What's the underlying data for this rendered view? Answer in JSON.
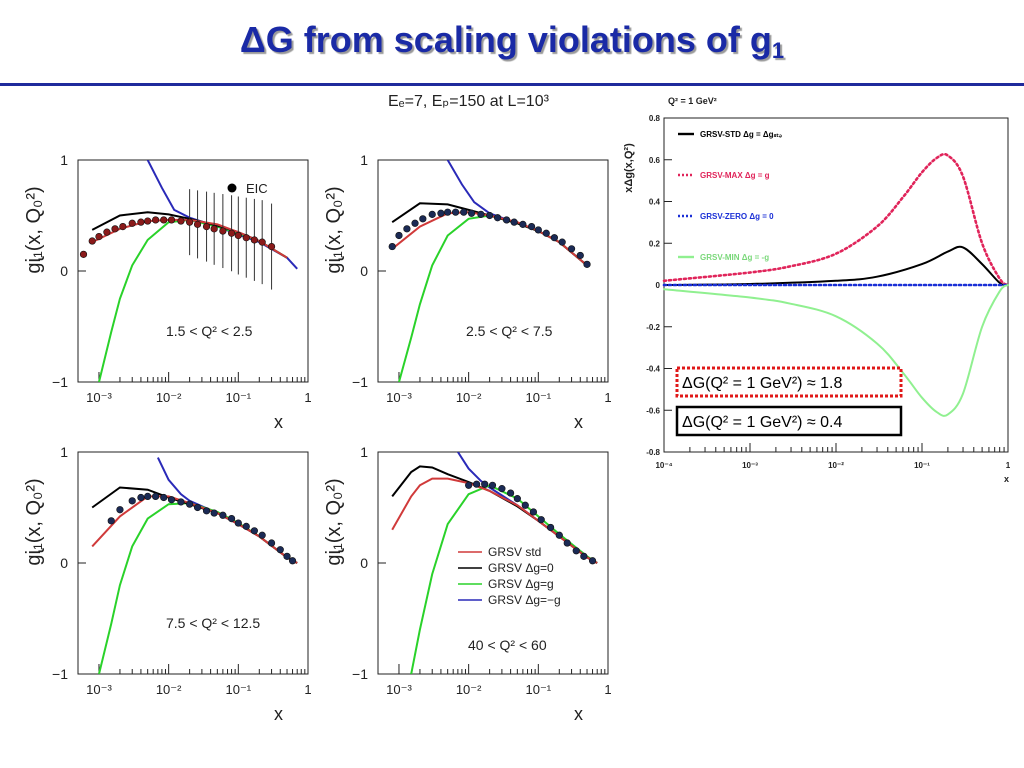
{
  "slide": {
    "title_main": "ΔG from scaling violations of g",
    "title_sub": "1"
  },
  "left_figure": {
    "header": "Eₑ=7, Eₚ=150 at L=10³",
    "ylabel": "gᶖ₁(x, Q₀²)",
    "xlabel": "x",
    "y_ticks": [
      "1",
      "0",
      "−1"
    ],
    "x_ticks": [
      "10⁻³",
      "10⁻²",
      "10⁻¹",
      "1"
    ],
    "eic_label": "EIC",
    "legend": [
      {
        "label": "GRSV std",
        "color": "#d03a3a"
      },
      {
        "label": "GRSV Δg=0",
        "color": "#000000"
      },
      {
        "label": "GRSV Δg=g",
        "color": "#2ad22a"
      },
      {
        "label": "GRSV Δg=−g",
        "color": "#2a2ab8"
      }
    ]
  },
  "chart_data": [
    {
      "type": "line",
      "panel_label": "1.5 < Q² < 2.5",
      "xscale": "log",
      "xlim": [
        0.0005,
        1
      ],
      "ylim": [
        -1,
        1
      ],
      "series": [
        {
          "name": "GRSV std",
          "x": [
            0.0008,
            0.002,
            0.005,
            0.01,
            0.02,
            0.05,
            0.1,
            0.2,
            0.5
          ],
          "y": [
            0.26,
            0.38,
            0.45,
            0.46,
            0.46,
            0.42,
            0.35,
            0.27,
            0.12
          ]
        },
        {
          "name": "GRSV Δg=0",
          "x": [
            0.0008,
            0.002,
            0.005,
            0.01,
            0.02,
            0.05,
            0.1,
            0.2,
            0.5
          ],
          "y": [
            0.37,
            0.5,
            0.53,
            0.51,
            0.47,
            0.41,
            0.35,
            0.27,
            0.12
          ]
        },
        {
          "name": "GRSV Δg=g",
          "x": [
            0.001,
            0.0015,
            0.002,
            0.003,
            0.005,
            0.01,
            0.02,
            0.05,
            0.1,
            0.2,
            0.5
          ],
          "y": [
            -1.0,
            -0.55,
            -0.25,
            0.05,
            0.28,
            0.44,
            0.46,
            0.4,
            0.34,
            0.27,
            0.12
          ]
        },
        {
          "name": "GRSV Δg=−g",
          "x": [
            0.005,
            0.008,
            0.012,
            0.02,
            0.05,
            0.1,
            0.2,
            0.5,
            0.7
          ],
          "y": [
            1.0,
            0.75,
            0.55,
            0.48,
            0.4,
            0.33,
            0.26,
            0.12,
            0.02
          ]
        }
      ],
      "eic_points": {
        "x": [
          0.0006,
          0.0008,
          0.001,
          0.0013,
          0.0017,
          0.0022,
          0.003,
          0.004,
          0.005,
          0.0065,
          0.0085,
          0.011,
          0.015,
          0.02,
          0.026,
          0.035,
          0.045,
          0.06,
          0.08,
          0.1,
          0.13,
          0.17,
          0.22,
          0.3
        ],
        "y": [
          0.15,
          0.27,
          0.31,
          0.35,
          0.38,
          0.4,
          0.43,
          0.44,
          0.45,
          0.46,
          0.46,
          0.46,
          0.45,
          0.44,
          0.42,
          0.4,
          0.38,
          0.36,
          0.34,
          0.32,
          0.3,
          0.28,
          0.26,
          0.22
        ]
      }
    },
    {
      "type": "line",
      "panel_label": "2.5 < Q² < 7.5",
      "xscale": "log",
      "xlim": [
        0.0005,
        1
      ],
      "ylim": [
        -1,
        1
      ],
      "series": [
        {
          "name": "GRSV std",
          "x": [
            0.0008,
            0.002,
            0.005,
            0.01,
            0.02,
            0.05,
            0.1,
            0.2,
            0.5
          ],
          "y": [
            0.2,
            0.4,
            0.52,
            0.53,
            0.5,
            0.44,
            0.36,
            0.26,
            0.05
          ]
        },
        {
          "name": "GRSV Δg=0",
          "x": [
            0.0008,
            0.002,
            0.005,
            0.01,
            0.02,
            0.05,
            0.1,
            0.2,
            0.5
          ],
          "y": [
            0.44,
            0.61,
            0.6,
            0.55,
            0.5,
            0.43,
            0.36,
            0.26,
            0.05
          ]
        },
        {
          "name": "GRSV Δg=g",
          "x": [
            0.001,
            0.0015,
            0.002,
            0.003,
            0.005,
            0.01,
            0.02,
            0.05,
            0.1,
            0.2,
            0.5
          ],
          "y": [
            -1.0,
            -0.6,
            -0.3,
            0.05,
            0.32,
            0.47,
            0.5,
            0.43,
            0.36,
            0.26,
            0.05
          ]
        },
        {
          "name": "GRSV Δg=−g",
          "x": [
            0.005,
            0.008,
            0.012,
            0.02,
            0.05,
            0.1,
            0.2,
            0.5
          ],
          "y": [
            1.0,
            0.78,
            0.62,
            0.52,
            0.43,
            0.36,
            0.26,
            0.05
          ]
        }
      ],
      "eic_points": {
        "x": [
          0.0008,
          0.001,
          0.0013,
          0.0017,
          0.0022,
          0.003,
          0.004,
          0.005,
          0.0065,
          0.0085,
          0.011,
          0.015,
          0.02,
          0.026,
          0.035,
          0.045,
          0.06,
          0.08,
          0.1,
          0.13,
          0.17,
          0.22,
          0.3,
          0.4,
          0.5
        ],
        "y": [
          0.22,
          0.32,
          0.38,
          0.43,
          0.47,
          0.51,
          0.52,
          0.53,
          0.53,
          0.53,
          0.52,
          0.51,
          0.5,
          0.48,
          0.46,
          0.44,
          0.42,
          0.4,
          0.37,
          0.34,
          0.3,
          0.26,
          0.2,
          0.14,
          0.06
        ]
      }
    },
    {
      "type": "line",
      "panel_label": "7.5 < Q² < 12.5",
      "xscale": "log",
      "xlim": [
        0.0005,
        1
      ],
      "ylim": [
        -1,
        1
      ],
      "series": [
        {
          "name": "GRSV std",
          "x": [
            0.0008,
            0.002,
            0.005,
            0.01,
            0.02,
            0.05,
            0.1,
            0.2,
            0.5,
            0.7
          ],
          "y": [
            0.15,
            0.42,
            0.6,
            0.6,
            0.54,
            0.45,
            0.35,
            0.24,
            0.05,
            0.0
          ]
        },
        {
          "name": "GRSV Δg=0",
          "x": [
            0.0008,
            0.002,
            0.005,
            0.01,
            0.02,
            0.05,
            0.1,
            0.2,
            0.5,
            0.7
          ],
          "y": [
            0.5,
            0.68,
            0.66,
            0.59,
            0.53,
            0.45,
            0.35,
            0.24,
            0.05,
            0.0
          ]
        },
        {
          "name": "GRSV Δg=g",
          "x": [
            0.001,
            0.0015,
            0.002,
            0.003,
            0.005,
            0.01,
            0.02,
            0.05,
            0.1,
            0.2,
            0.5,
            0.7
          ],
          "y": [
            -1.0,
            -0.55,
            -0.2,
            0.15,
            0.4,
            0.53,
            0.54,
            0.46,
            0.36,
            0.24,
            0.05,
            0.0
          ]
        },
        {
          "name": "GRSV Δg=−g",
          "x": [
            0.007,
            0.01,
            0.015,
            0.02,
            0.05,
            0.1,
            0.2,
            0.5,
            0.7
          ],
          "y": [
            0.95,
            0.75,
            0.62,
            0.56,
            0.45,
            0.35,
            0.24,
            0.05,
            0.0
          ]
        }
      ],
      "eic_points": {
        "x": [
          0.0015,
          0.002,
          0.003,
          0.004,
          0.005,
          0.0065,
          0.0085,
          0.011,
          0.015,
          0.02,
          0.026,
          0.035,
          0.045,
          0.06,
          0.08,
          0.1,
          0.13,
          0.17,
          0.22,
          0.3,
          0.4,
          0.5,
          0.6
        ],
        "y": [
          0.38,
          0.48,
          0.56,
          0.59,
          0.6,
          0.6,
          0.59,
          0.57,
          0.55,
          0.53,
          0.5,
          0.47,
          0.45,
          0.43,
          0.4,
          0.36,
          0.33,
          0.29,
          0.25,
          0.18,
          0.12,
          0.06,
          0.02
        ]
      }
    },
    {
      "type": "line",
      "panel_label": "40 < Q² < 60",
      "xscale": "log",
      "xlim": [
        0.0005,
        1
      ],
      "ylim": [
        -1,
        1
      ],
      "series": [
        {
          "name": "GRSV std",
          "x": [
            0.0008,
            0.0015,
            0.002,
            0.003,
            0.005,
            0.01,
            0.02,
            0.05,
            0.1,
            0.2,
            0.5,
            0.7
          ],
          "y": [
            0.3,
            0.6,
            0.7,
            0.76,
            0.76,
            0.72,
            0.65,
            0.52,
            0.38,
            0.24,
            0.05,
            0.0
          ]
        },
        {
          "name": "GRSV Δg=0",
          "x": [
            0.0008,
            0.0015,
            0.002,
            0.003,
            0.005,
            0.01,
            0.02,
            0.05,
            0.1,
            0.2,
            0.5,
            0.7
          ],
          "y": [
            0.6,
            0.82,
            0.87,
            0.86,
            0.8,
            0.73,
            0.65,
            0.51,
            0.38,
            0.24,
            0.05,
            0.0
          ]
        },
        {
          "name": "GRSV Δg=g",
          "x": [
            0.0015,
            0.002,
            0.003,
            0.005,
            0.01,
            0.02,
            0.05,
            0.1,
            0.2,
            0.5,
            0.7
          ],
          "y": [
            -1.0,
            -0.6,
            -0.1,
            0.35,
            0.62,
            0.7,
            0.58,
            0.42,
            0.26,
            0.06,
            0.0
          ]
        },
        {
          "name": "GRSV Δg=−g",
          "x": [
            0.007,
            0.01,
            0.015,
            0.02,
            0.05,
            0.1,
            0.2,
            0.5,
            0.7
          ],
          "y": [
            1.0,
            0.85,
            0.74,
            0.68,
            0.52,
            0.38,
            0.24,
            0.05,
            0.0
          ]
        }
      ],
      "eic_points": {
        "x": [
          0.01,
          0.013,
          0.017,
          0.022,
          0.03,
          0.04,
          0.05,
          0.065,
          0.085,
          0.11,
          0.15,
          0.2,
          0.26,
          0.35,
          0.45,
          0.6
        ],
        "y": [
          0.7,
          0.71,
          0.71,
          0.7,
          0.67,
          0.63,
          0.58,
          0.52,
          0.46,
          0.39,
          0.32,
          0.25,
          0.18,
          0.11,
          0.06,
          0.02
        ]
      }
    },
    {
      "type": "line",
      "title": "Q² = 1 GeV²",
      "ylabel": "xΔg(x,Q²)",
      "xlabel": "x",
      "xscale": "log",
      "xlim": [
        0.0001,
        1
      ],
      "ylim": [
        -0.8,
        0.8
      ],
      "y_ticks": [
        "0.8",
        "0.6",
        "0.4",
        "0.2",
        "0",
        "-0.2",
        "-0.4",
        "-0.6",
        "-0.8"
      ],
      "x_ticks": [
        "10⁻⁴",
        "10⁻³",
        "10⁻²",
        "10⁻¹",
        "1"
      ],
      "series": [
        {
          "name": "GRSV-STD Δg = Δgₛₜₔ",
          "color": "#000000",
          "style": "solid",
          "x": [
            0.0001,
            0.001,
            0.01,
            0.03,
            0.1,
            0.2,
            0.3,
            0.5,
            0.8,
            1.0
          ],
          "y": [
            0.0,
            0.005,
            0.02,
            0.04,
            0.1,
            0.16,
            0.18,
            0.1,
            0.01,
            0.0
          ]
        },
        {
          "name": "GRSV-MAX Δg = g",
          "color": "#e0245a",
          "style": "dotted",
          "x": [
            0.0001,
            0.001,
            0.003,
            0.01,
            0.03,
            0.06,
            0.1,
            0.15,
            0.2,
            0.3,
            0.5,
            0.8,
            1.0
          ],
          "y": [
            0.02,
            0.06,
            0.09,
            0.15,
            0.28,
            0.42,
            0.54,
            0.61,
            0.62,
            0.52,
            0.2,
            0.03,
            0.0
          ]
        },
        {
          "name": "GRSV-ZERO Δg = 0",
          "color": "#1a2fd6",
          "style": "dotted",
          "x": [
            0.0001,
            1.0
          ],
          "y": [
            0.0,
            0.0
          ]
        },
        {
          "name": "GRSV-MIN Δg = -g",
          "color": "#90f090",
          "style": "solid",
          "x": [
            0.0001,
            0.001,
            0.003,
            0.01,
            0.03,
            0.06,
            0.1,
            0.15,
            0.2,
            0.3,
            0.5,
            0.8,
            1.0
          ],
          "y": [
            -0.02,
            -0.06,
            -0.09,
            -0.15,
            -0.28,
            -0.42,
            -0.54,
            -0.61,
            -0.62,
            -0.52,
            -0.2,
            -0.03,
            0.0
          ]
        }
      ],
      "annotations": [
        {
          "text": "ΔG(Q² = 1 GeV²) ≈ 1.8",
          "border": "#e01818",
          "style": "dotted"
        },
        {
          "text": "ΔG(Q² = 1 GeV²) ≈ 0.4",
          "border": "#000000",
          "style": "solid"
        }
      ]
    }
  ]
}
